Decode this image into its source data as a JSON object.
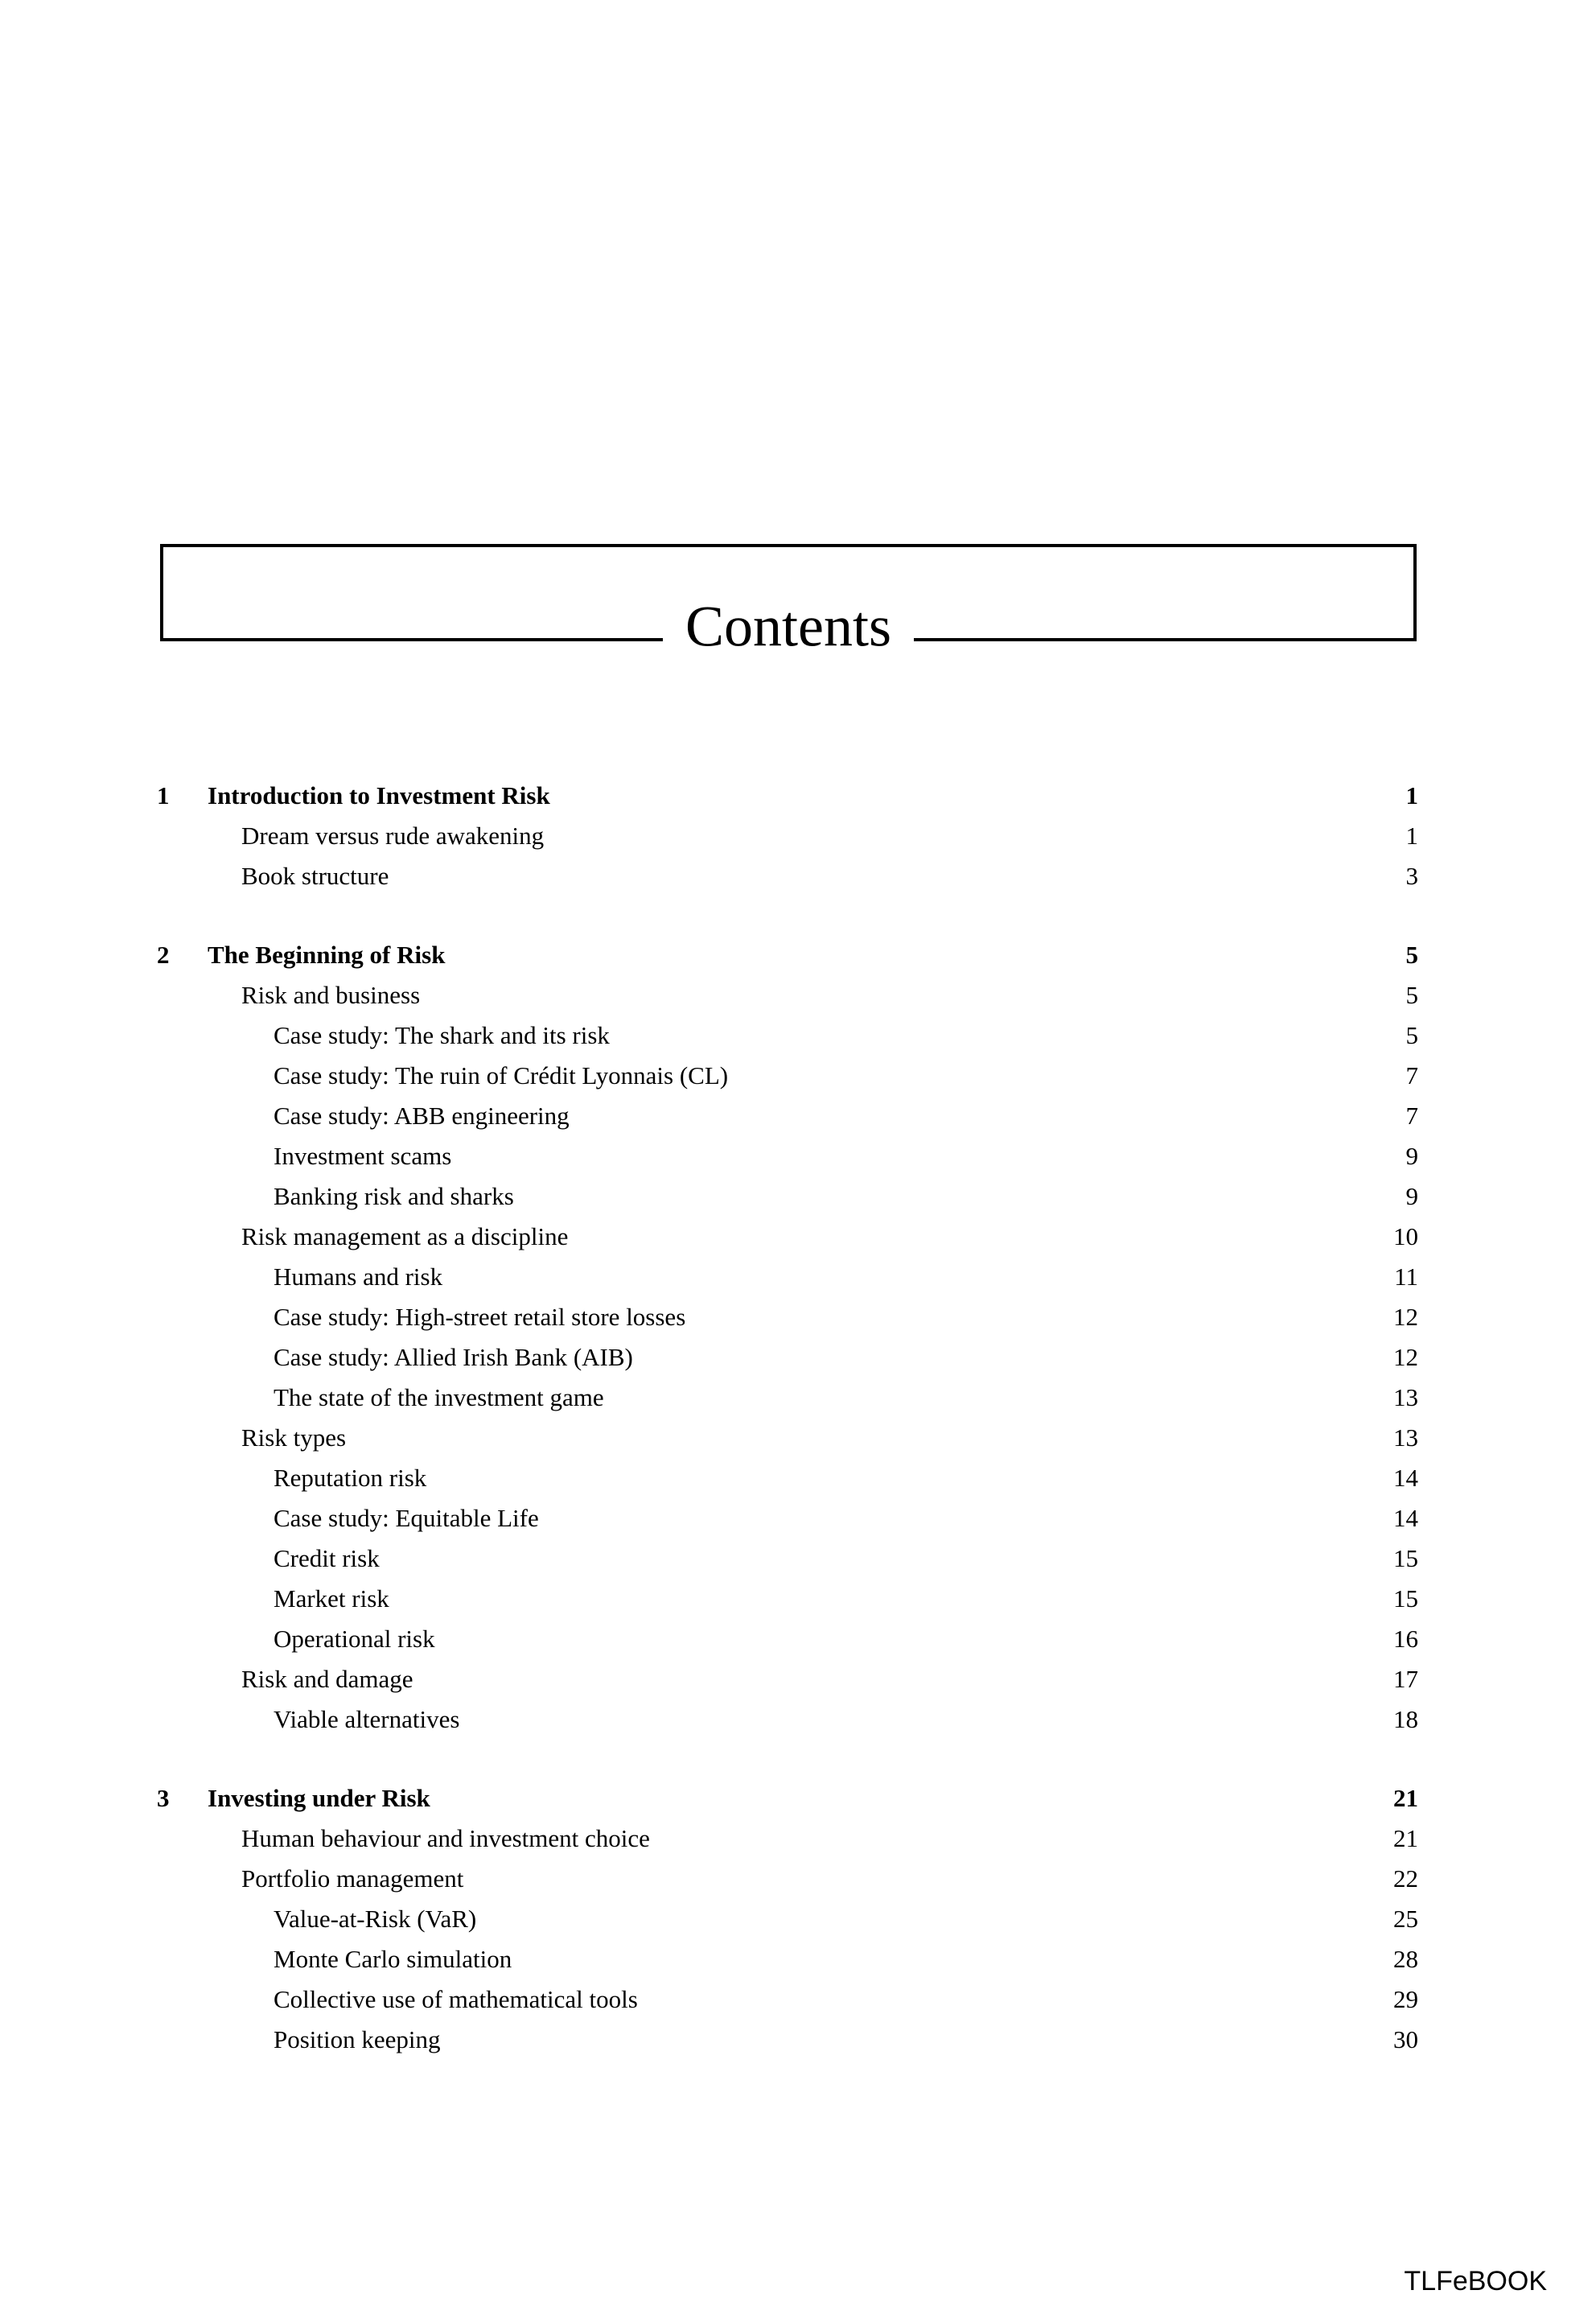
{
  "header": {
    "title": "Contents"
  },
  "footer": {
    "brand": "TLFeBOOK"
  },
  "colors": {
    "text": "#000000",
    "background": "#ffffff"
  },
  "toc": {
    "rows": [
      {
        "type": "chapter",
        "number": "1",
        "label": "Introduction to Investment Risk",
        "page": "1"
      },
      {
        "type": "entry",
        "level": 1,
        "label": "Dream versus rude awakening",
        "page": "1"
      },
      {
        "type": "entry",
        "level": 1,
        "label": "Book structure",
        "page": "3"
      },
      {
        "type": "chapter",
        "number": "2",
        "label": "The Beginning of Risk",
        "page": "5"
      },
      {
        "type": "entry",
        "level": 1,
        "label": "Risk and business",
        "page": "5"
      },
      {
        "type": "entry",
        "level": 2,
        "label": "Case study: The shark and its risk",
        "page": "5"
      },
      {
        "type": "entry",
        "level": 2,
        "label": "Case study: The ruin of Crédit Lyonnais (CL)",
        "page": "7"
      },
      {
        "type": "entry",
        "level": 2,
        "label": "Case study: ABB engineering",
        "page": "7"
      },
      {
        "type": "entry",
        "level": 2,
        "label": "Investment scams",
        "page": "9"
      },
      {
        "type": "entry",
        "level": 2,
        "label": "Banking risk and sharks",
        "page": "9"
      },
      {
        "type": "entry",
        "level": 1,
        "label": "Risk management as a discipline",
        "page": "10"
      },
      {
        "type": "entry",
        "level": 2,
        "label": "Humans and risk",
        "page": "11"
      },
      {
        "type": "entry",
        "level": 2,
        "label": "Case study: High-street retail store losses",
        "page": "12"
      },
      {
        "type": "entry",
        "level": 2,
        "label": "Case study: Allied Irish Bank (AIB)",
        "page": "12"
      },
      {
        "type": "entry",
        "level": 2,
        "label": "The state of the investment game",
        "page": "13"
      },
      {
        "type": "entry",
        "level": 1,
        "label": "Risk types",
        "page": "13"
      },
      {
        "type": "entry",
        "level": 2,
        "label": "Reputation risk",
        "page": "14"
      },
      {
        "type": "entry",
        "level": 2,
        "label": "Case study: Equitable Life",
        "page": "14"
      },
      {
        "type": "entry",
        "level": 2,
        "label": "Credit risk",
        "page": "15"
      },
      {
        "type": "entry",
        "level": 2,
        "label": "Market risk",
        "page": "15"
      },
      {
        "type": "entry",
        "level": 2,
        "label": "Operational risk",
        "page": "16"
      },
      {
        "type": "entry",
        "level": 1,
        "label": "Risk and damage",
        "page": "17"
      },
      {
        "type": "entry",
        "level": 2,
        "label": "Viable alternatives",
        "page": "18"
      },
      {
        "type": "chapter",
        "number": "3",
        "label": "Investing under Risk",
        "page": "21"
      },
      {
        "type": "entry",
        "level": 1,
        "label": "Human behaviour and investment choice",
        "page": "21"
      },
      {
        "type": "entry",
        "level": 1,
        "label": "Portfolio management",
        "page": "22"
      },
      {
        "type": "entry",
        "level": 2,
        "label": "Value-at-Risk (VaR)",
        "page": "25"
      },
      {
        "type": "entry",
        "level": 2,
        "label": "Monte Carlo simulation",
        "page": "28"
      },
      {
        "type": "entry",
        "level": 2,
        "label": "Collective use of mathematical tools",
        "page": "29"
      },
      {
        "type": "entry",
        "level": 2,
        "label": "Position keeping",
        "page": "30"
      }
    ]
  }
}
